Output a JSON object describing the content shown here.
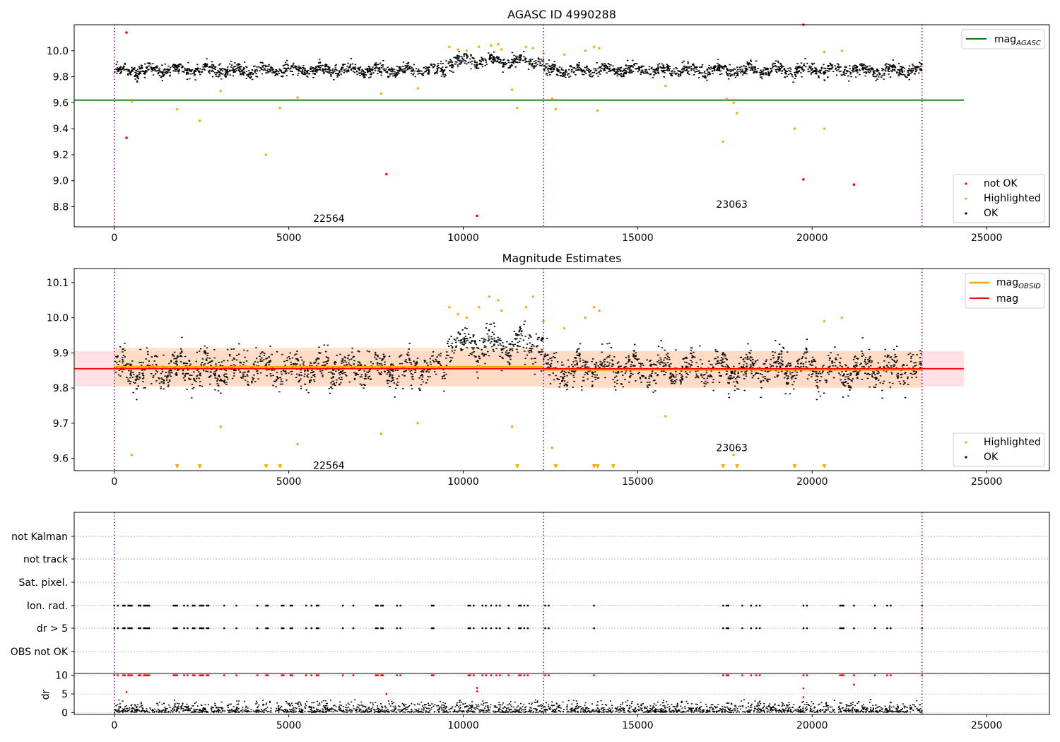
{
  "chart_data": [
    {
      "type": "scatter",
      "title": "AGASC ID 4990288",
      "xlim": [
        -1150,
        26800
      ],
      "ylim": [
        8.645,
        10.2
      ],
      "x_ticks": [
        0,
        5000,
        10000,
        15000,
        20000,
        25000
      ],
      "y_ticks": [
        8.8,
        9.0,
        9.2,
        9.4,
        9.6,
        9.8,
        10.0
      ],
      "obsid_boundaries": [
        0,
        12300,
        23150
      ],
      "obsid_labels": [
        {
          "text": "22564",
          "x": 6150,
          "y": 8.71
        },
        {
          "text": "23063",
          "x": 17700,
          "y": 8.82
        }
      ],
      "reference_line": {
        "name": "mag_AGASC",
        "y": 9.62,
        "x_range": [
          -1150,
          24350
        ],
        "color": "#008000"
      },
      "band": {
        "mean": 9.855,
        "amplitude": 0.06,
        "x_range": [
          0,
          23150
        ]
      },
      "ok_color": "#000000",
      "highlighted_color": "#ffa500",
      "not_ok_color": "#ff0000",
      "highlighted_points": [
        [
          500,
          9.61
        ],
        [
          1800,
          9.55
        ],
        [
          2450,
          9.46
        ],
        [
          3050,
          9.69
        ],
        [
          4350,
          9.2
        ],
        [
          4750,
          9.56
        ],
        [
          5250,
          9.64
        ],
        [
          7650,
          9.67
        ],
        [
          8700,
          9.71
        ],
        [
          9600,
          10.03
        ],
        [
          9850,
          10.01
        ],
        [
          10100,
          10.0
        ],
        [
          10450,
          10.03
        ],
        [
          10800,
          10.04
        ],
        [
          11000,
          10.05
        ],
        [
          11100,
          10.01
        ],
        [
          11400,
          9.7
        ],
        [
          11550,
          9.56
        ],
        [
          11800,
          10.03
        ],
        [
          12000,
          10.02
        ],
        [
          12300,
          9.98
        ],
        [
          12550,
          9.63
        ],
        [
          12650,
          9.55
        ],
        [
          12900,
          9.97
        ],
        [
          13500,
          10.0
        ],
        [
          13750,
          10.03
        ],
        [
          13850,
          9.54
        ],
        [
          13900,
          10.02
        ],
        [
          15800,
          9.73
        ],
        [
          17450,
          9.3
        ],
        [
          17550,
          9.63
        ],
        [
          17750,
          9.6
        ],
        [
          17850,
          9.52
        ],
        [
          19500,
          9.4
        ],
        [
          20350,
          9.4
        ],
        [
          20350,
          9.99
        ],
        [
          20850,
          10.0
        ]
      ],
      "not_ok_points": [
        [
          350,
          10.14
        ],
        [
          350,
          9.33
        ],
        [
          7800,
          9.05
        ],
        [
          10400,
          8.73
        ],
        [
          19750,
          10.2
        ],
        [
          19750,
          9.01
        ],
        [
          21200,
          8.97
        ]
      ],
      "legend": [
        {
          "label": "mag",
          "sub": "AGASC",
          "color": "#008000",
          "marker": "line"
        },
        {
          "label": "not OK",
          "color": "#ff0000",
          "marker": "dot"
        },
        {
          "label": "Highlighted",
          "color": "#ffa500",
          "marker": "dot"
        },
        {
          "label": "OK",
          "color": "#000000",
          "marker": "dot"
        }
      ]
    },
    {
      "type": "scatter",
      "title": "Magnitude Estimates",
      "xlim": [
        -1150,
        26800
      ],
      "ylim": [
        9.565,
        10.14
      ],
      "x_ticks": [
        0,
        5000,
        10000,
        15000,
        20000,
        25000
      ],
      "y_ticks": [
        9.6,
        9.7,
        9.8,
        9.9,
        10.0,
        10.1
      ],
      "obsid_boundaries": [
        0,
        12300,
        23150
      ],
      "obsid_labels": [
        {
          "text": "22564",
          "x": 6150,
          "y": 9.58
        },
        {
          "text": "23063",
          "x": 17700,
          "y": 9.63
        }
      ],
      "mag_line": {
        "name": "mag",
        "y": 9.855,
        "band": [
          9.805,
          9.905
        ],
        "x_range": [
          -1150,
          24350
        ],
        "color": "#ff0000",
        "band_color": "#ffe0e4"
      },
      "obsid_mag": [
        {
          "x_range": [
            0,
            12300
          ],
          "y": 9.86,
          "band": [
            9.805,
            9.915
          ]
        },
        {
          "x_range": [
            12300,
            23150
          ],
          "y": 9.852,
          "band": [
            9.8,
            9.905
          ]
        }
      ],
      "obsid_mag_color": "#ffa500",
      "band": {
        "mean": 9.855,
        "amplitude": 0.06,
        "x_range": [
          0,
          23150
        ]
      },
      "highlighted_points": [
        [
          500,
          9.61
        ],
        [
          3050,
          9.69
        ],
        [
          5250,
          9.64
        ],
        [
          7650,
          9.67
        ],
        [
          8700,
          9.7
        ],
        [
          9600,
          10.03
        ],
        [
          9850,
          10.01
        ],
        [
          10100,
          10.0
        ],
        [
          10450,
          10.03
        ],
        [
          10750,
          10.06
        ],
        [
          11000,
          10.05
        ],
        [
          11100,
          10.02
        ],
        [
          11400,
          9.69
        ],
        [
          11800,
          10.03
        ],
        [
          12000,
          10.06
        ],
        [
          12300,
          9.99
        ],
        [
          12550,
          9.63
        ],
        [
          12900,
          9.97
        ],
        [
          13500,
          10.0
        ],
        [
          13750,
          10.03
        ],
        [
          13900,
          10.02
        ],
        [
          15800,
          9.72
        ],
        [
          17750,
          9.61
        ],
        [
          20350,
          9.99
        ],
        [
          20850,
          10.0
        ]
      ],
      "clipped_markers_x": [
        1800,
        2450,
        4350,
        4750,
        11550,
        12650,
        13750,
        13850,
        14300,
        17450,
        17850,
        19500,
        20350
      ],
      "legend": [
        {
          "label": "mag",
          "sub": "OBSID",
          "color": "#ffa500",
          "marker": "line"
        },
        {
          "label": "mag",
          "color": "#ff0000",
          "marker": "line"
        },
        {
          "label": "Highlighted",
          "color": "#ffa500",
          "marker": "dot"
        },
        {
          "label": "OK",
          "color": "#000000",
          "marker": "dot"
        }
      ]
    },
    {
      "type": "scatter",
      "title": "",
      "xlim": [
        -1150,
        26800
      ],
      "ylim": [
        -0.5,
        6.5
      ],
      "flag_categories": [
        "not Kalman",
        "not track",
        "Sat. pixel.",
        "Ion. rad.",
        "dr > 5",
        "OBS not OK"
      ],
      "obsid_boundaries": [
        0,
        12300,
        23150
      ],
      "flag_times": [
        0,
        100,
        250,
        300,
        400,
        450,
        500,
        700,
        750,
        850,
        900,
        950,
        1000,
        1700,
        1750,
        1800,
        2000,
        2100,
        2250,
        2300,
        2450,
        2500,
        2550,
        2650,
        2700,
        3150,
        3500,
        4100,
        4350,
        4400,
        4800,
        4850,
        5050,
        5100,
        5500,
        5650,
        5800,
        5850,
        6550,
        6850,
        7500,
        7550,
        7650,
        7700,
        8100,
        8200,
        9100,
        9150,
        10150,
        10200,
        10300,
        10550,
        10650,
        10800,
        10950,
        11050,
        11300,
        11600,
        11650,
        11750,
        11850,
        12350,
        12450,
        13750,
        17450,
        17550,
        17600,
        18000,
        18250,
        18400,
        18500,
        19750,
        19850,
        20800,
        20850,
        20900,
        21200,
        21800,
        22150,
        22250,
        23150
      ],
      "x_ticks": [
        0,
        5000,
        10000,
        15000,
        20000,
        25000
      ],
      "dr_ylabel": "dr",
      "dr_ylim": [
        -0.5,
        10.5
      ],
      "dr_y_ticks": [
        0,
        5,
        10
      ],
      "dr_outliers": [
        [
          350,
          5.5
        ],
        [
          7800,
          5.0
        ],
        [
          10400,
          6.6
        ],
        [
          10400,
          5.7
        ],
        [
          19750,
          6.5
        ],
        [
          19750,
          4.1
        ],
        [
          21200,
          7.5
        ]
      ]
    }
  ]
}
